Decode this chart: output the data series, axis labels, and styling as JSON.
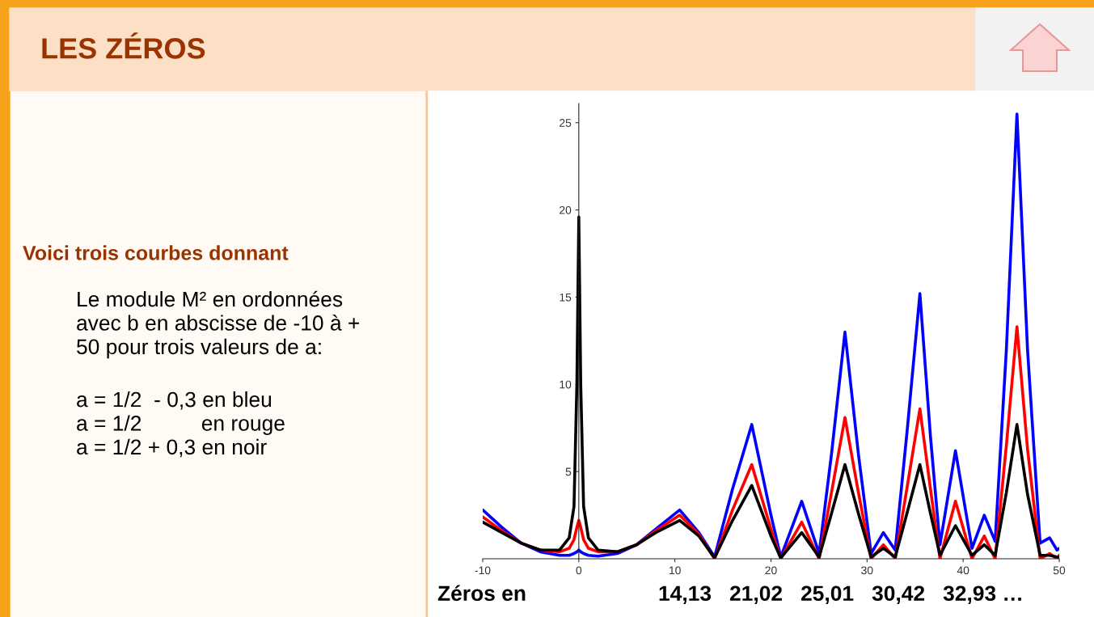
{
  "chart_data": {
    "type": "line",
    "title": "LES ZÉROS",
    "x": [
      -10,
      -8,
      -6,
      -4,
      -2,
      -1,
      -0.5,
      -0.2,
      0,
      0.2,
      0.5,
      1,
      2,
      4,
      6,
      8,
      10.5,
      12.5,
      14.13,
      16,
      18,
      20,
      21.02,
      23.2,
      25.01,
      26.3,
      27.7,
      29.1,
      30.42,
      31.7,
      32.93,
      34.2,
      35.5,
      36.6,
      37.59,
      39.2,
      40.92,
      42.2,
      43.33,
      44.5,
      45.6,
      46.7,
      48.01,
      49,
      49.77,
      50
    ],
    "series": [
      {
        "color": "#0000ff",
        "values": [
          2.8,
          1.8,
          0.9,
          0.4,
          0.2,
          0.2,
          0.3,
          0.4,
          0.5,
          0.4,
          0.3,
          0.2,
          0.15,
          0.3,
          0.8,
          1.7,
          2.8,
          1.5,
          0.1,
          4.0,
          7.7,
          2.5,
          0.1,
          3.3,
          0.3,
          6.0,
          13.0,
          6.0,
          0.3,
          1.5,
          0.5,
          7.5,
          15.2,
          7.0,
          0.8,
          6.2,
          0.6,
          2.5,
          1.0,
          12,
          25.5,
          12,
          0.9,
          1.2,
          0.5,
          0.6
        ]
      },
      {
        "color": "#ff0000",
        "values": [
          2.4,
          1.6,
          0.9,
          0.5,
          0.4,
          0.6,
          1.1,
          1.8,
          2.2,
          1.8,
          1.1,
          0.6,
          0.4,
          0.4,
          0.8,
          1.6,
          2.5,
          1.4,
          0,
          2.8,
          5.4,
          1.7,
          0,
          2.1,
          0,
          3.8,
          8.1,
          3.8,
          0,
          0.8,
          0,
          4.2,
          8.6,
          4.0,
          0,
          3.3,
          0,
          1.3,
          0,
          6.5,
          13.3,
          6.3,
          0,
          0.3,
          0,
          0.2
        ]
      },
      {
        "color": "#000000",
        "values": [
          2.1,
          1.5,
          0.9,
          0.5,
          0.5,
          1.2,
          3.0,
          10,
          19.6,
          10,
          3.0,
          1.2,
          0.5,
          0.4,
          0.8,
          1.5,
          2.2,
          1.3,
          0.05,
          2.2,
          4.2,
          1.3,
          0.05,
          1.5,
          0.1,
          2.6,
          5.4,
          2.6,
          0.1,
          0.6,
          0.1,
          2.7,
          5.4,
          2.6,
          0.2,
          1.9,
          0.2,
          0.8,
          0.2,
          3.8,
          7.7,
          3.7,
          0.2,
          0.2,
          0.1,
          0.1
        ]
      }
    ],
    "xlim": [
      -10,
      50
    ],
    "ylim": [
      0,
      26.1
    ],
    "xticks": [
      -10,
      0,
      10,
      20,
      30,
      40,
      50
    ],
    "yticks": [
      5,
      10,
      15,
      20,
      25
    ],
    "grid": false,
    "legend": false,
    "marker": "none",
    "line_style": "solid",
    "annotations": [
      "Voici trois courbes donnant",
      "Le module M² en ordonnées\navec b en abscisse de -10 à +\n50 pour trois valeurs de a:",
      "a = 1/2  - 0,3 en bleu\na = 1/2          en rouge\na = 1/2 + 0,3 en noir",
      "Zéros en",
      "14,13   21,02   25,01   30,42   32,93 …"
    ]
  }
}
